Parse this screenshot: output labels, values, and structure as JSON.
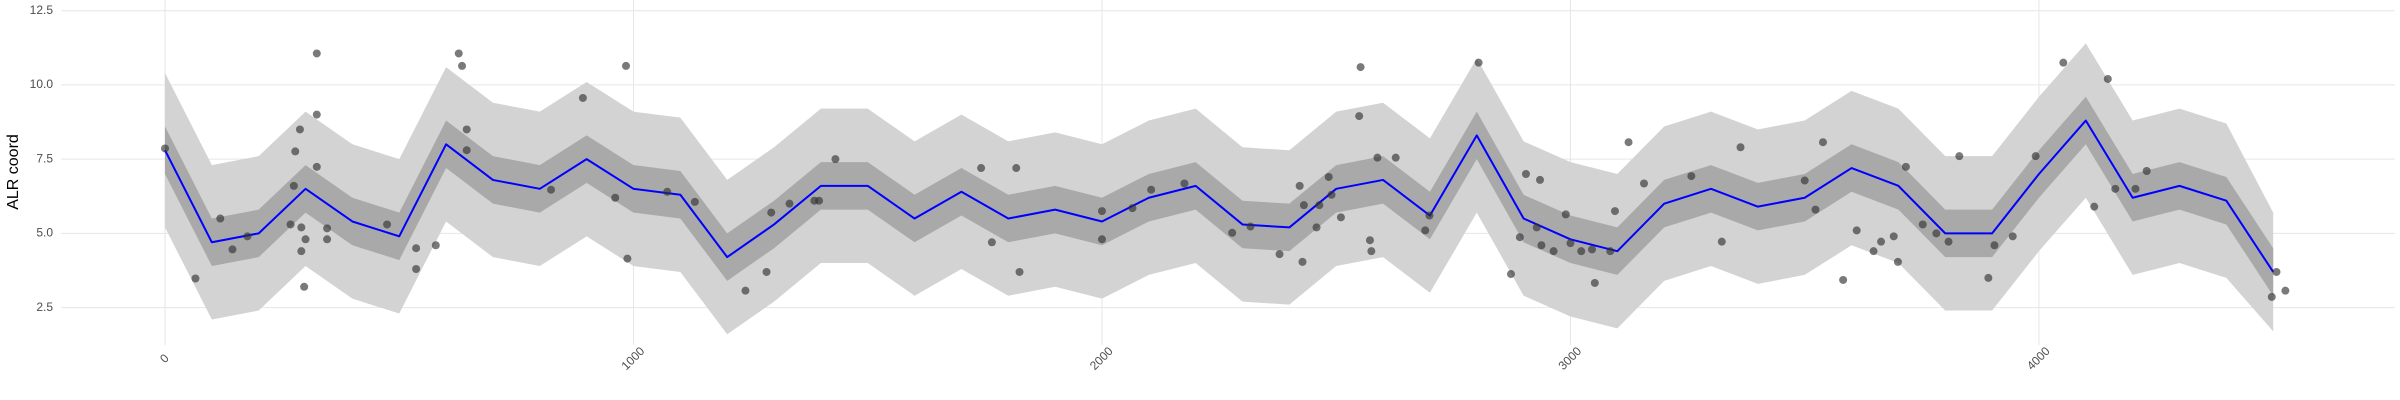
{
  "chart_data": {
    "type": "line",
    "y_label": "ALR coord",
    "x": [
      0,
      100,
      200,
      300,
      400,
      500,
      600,
      700,
      800,
      900,
      1000,
      1100,
      1200,
      1300,
      1400,
      1500,
      1600,
      1700,
      1800,
      1900,
      2000,
      2100,
      2200,
      2300,
      2400,
      2500,
      2600,
      2700,
      2800,
      2900,
      3000,
      3100,
      3200,
      3300,
      3400,
      3500,
      3600,
      3700,
      3800,
      3900,
      4000,
      4100,
      4200,
      4300,
      4400,
      4500
    ],
    "series": [
      {
        "color": "#0000ff",
        "values": [
          7.8,
          4.7,
          5.0,
          6.5,
          5.4,
          4.9,
          8.0,
          6.8,
          6.5,
          7.5,
          6.5,
          6.3,
          4.2,
          5.3,
          6.6,
          6.6,
          5.5,
          6.4,
          5.5,
          5.8,
          5.4,
          6.2,
          6.6,
          5.3,
          5.2,
          6.5,
          6.8,
          5.6,
          8.3,
          5.5,
          4.8,
          4.4,
          6.0,
          6.5,
          5.9,
          6.2,
          7.2,
          6.6,
          5.0,
          5.0,
          7.0,
          8.8,
          6.2,
          6.6,
          6.1,
          3.7
        ]
      }
    ],
    "bands": [
      {
        "color": "#d3d3d3",
        "lower": [
          5.2,
          2.1,
          2.4,
          3.9,
          2.8,
          2.3,
          5.4,
          4.2,
          3.9,
          4.9,
          3.9,
          3.7,
          1.6,
          2.7,
          4.0,
          4.0,
          2.9,
          3.8,
          2.9,
          3.2,
          2.8,
          3.6,
          4.0,
          2.7,
          2.6,
          3.9,
          4.2,
          3.0,
          5.7,
          2.9,
          2.2,
          1.8,
          3.4,
          3.9,
          3.3,
          3.6,
          4.6,
          4.0,
          2.4,
          2.4,
          4.4,
          6.2,
          3.6,
          4.0,
          3.5,
          1.7
        ],
        "upper": [
          10.4,
          7.3,
          7.6,
          9.1,
          8.0,
          7.5,
          10.6,
          9.4,
          9.1,
          10.1,
          9.1,
          8.9,
          6.8,
          7.9,
          9.2,
          9.2,
          8.1,
          9.0,
          8.1,
          8.4,
          8.0,
          8.8,
          9.2,
          7.9,
          7.8,
          9.1,
          9.4,
          8.2,
          10.9,
          8.1,
          7.4,
          7.0,
          8.6,
          9.1,
          8.5,
          8.8,
          9.8,
          9.2,
          7.6,
          7.6,
          9.6,
          11.4,
          8.8,
          9.2,
          8.7,
          5.7
        ]
      },
      {
        "color": "#a9a9a9",
        "lower": [
          7.0,
          3.9,
          4.2,
          5.7,
          4.6,
          4.1,
          7.2,
          6.0,
          5.7,
          6.7,
          5.7,
          5.5,
          3.4,
          4.5,
          5.8,
          5.8,
          4.7,
          5.6,
          4.7,
          5.0,
          4.6,
          5.4,
          5.8,
          4.5,
          4.4,
          5.7,
          6.0,
          4.8,
          7.5,
          4.7,
          4.0,
          3.6,
          5.2,
          5.7,
          5.1,
          5.4,
          6.4,
          5.8,
          4.2,
          4.2,
          6.2,
          8.0,
          5.4,
          5.8,
          5.3,
          2.9
        ],
        "upper": [
          8.6,
          5.5,
          5.8,
          7.3,
          6.2,
          5.7,
          8.8,
          7.6,
          7.3,
          8.3,
          7.3,
          7.1,
          5.0,
          6.1,
          7.4,
          7.4,
          6.3,
          7.2,
          6.3,
          6.6,
          6.2,
          7.0,
          7.4,
          6.1,
          6.0,
          7.3,
          7.6,
          6.4,
          9.1,
          6.3,
          5.6,
          5.2,
          6.8,
          7.3,
          6.7,
          7.0,
          8.0,
          7.4,
          5.8,
          5.8,
          7.8,
          9.6,
          7.0,
          7.4,
          6.9,
          4.5
        ]
      }
    ],
    "points": {
      "color": "#333333",
      "x": [
        0,
        65,
        118,
        144,
        176,
        268,
        275,
        278,
        288,
        291,
        291,
        297,
        300,
        324,
        324,
        324,
        346,
        346,
        474,
        536,
        536,
        578,
        627,
        634,
        644,
        644,
        824,
        892,
        961,
        984,
        987,
        1072,
        1131,
        1239,
        1284,
        1294,
        1333,
        1386,
        1396,
        1431,
        1742,
        1765,
        1817,
        1824,
        2000,
        2000,
        2065,
        2105,
        2176,
        2278,
        2317,
        2379,
        2422,
        2428,
        2431,
        2458,
        2464,
        2484,
        2490,
        2510,
        2549,
        2552,
        2572,
        2575,
        2588,
        2627,
        2690,
        2699,
        2804,
        2873,
        2892,
        2905,
        2928,
        2935,
        2938,
        2964,
        2990,
        3000,
        3023,
        3046,
        3052,
        3085,
        3095,
        3124,
        3157,
        3258,
        3323,
        3363,
        3500,
        3523,
        3539,
        3582,
        3611,
        3647,
        3663,
        3690,
        3699,
        3716,
        3752,
        3781,
        3807,
        3830,
        3892,
        3905,
        3944,
        3993,
        4052,
        4118,
        4147,
        4163,
        4206,
        4230,
        4497,
        4507,
        4526
      ],
      "y": [
        7.86,
        3.48,
        5.5,
        4.46,
        4.9,
        5.3,
        6.6,
        7.76,
        8.5,
        5.2,
        4.4,
        3.2,
        4.8,
        9.0,
        11.06,
        7.24,
        5.17,
        4.8,
        5.3,
        3.8,
        4.5,
        4.6,
        11.06,
        10.64,
        8.5,
        7.8,
        6.47,
        9.56,
        6.2,
        10.64,
        4.15,
        6.4,
        6.06,
        3.07,
        3.7,
        5.7,
        6.0,
        6.1,
        6.1,
        7.5,
        7.2,
        4.7,
        7.2,
        3.7,
        4.8,
        5.75,
        5.85,
        6.47,
        6.68,
        5.02,
        5.23,
        4.3,
        6.6,
        4.04,
        5.95,
        5.2,
        5.95,
        6.9,
        6.3,
        5.54,
        8.95,
        10.6,
        4.77,
        4.4,
        7.55,
        7.55,
        5.1,
        5.6,
        10.75,
        3.63,
        4.87,
        7.0,
        5.2,
        6.8,
        4.6,
        4.4,
        5.64,
        4.67,
        4.4,
        4.46,
        3.33,
        4.4,
        5.75,
        8.07,
        6.68,
        6.93,
        4.72,
        7.9,
        6.78,
        5.8,
        8.07,
        3.43,
        5.1,
        4.4,
        4.72,
        4.9,
        4.04,
        7.24,
        5.3,
        5.0,
        4.72,
        7.6,
        3.5,
        4.6,
        4.9,
        7.6,
        10.75,
        5.9,
        10.2,
        6.5,
        6.5,
        7.1,
        2.86,
        3.7,
        3.07
      ]
    },
    "xlim": [
      -222,
      4760
    ],
    "ylim": [
      1.24,
      12.86
    ],
    "xticks": [
      0,
      1000,
      2000,
      3000,
      4000
    ],
    "yticks": [
      2.5,
      {
        "value": 5,
        "label": "5.0"
      },
      7.5,
      {
        "value": 10,
        "label": "10.0"
      },
      12.5
    ],
    "grid": true
  }
}
